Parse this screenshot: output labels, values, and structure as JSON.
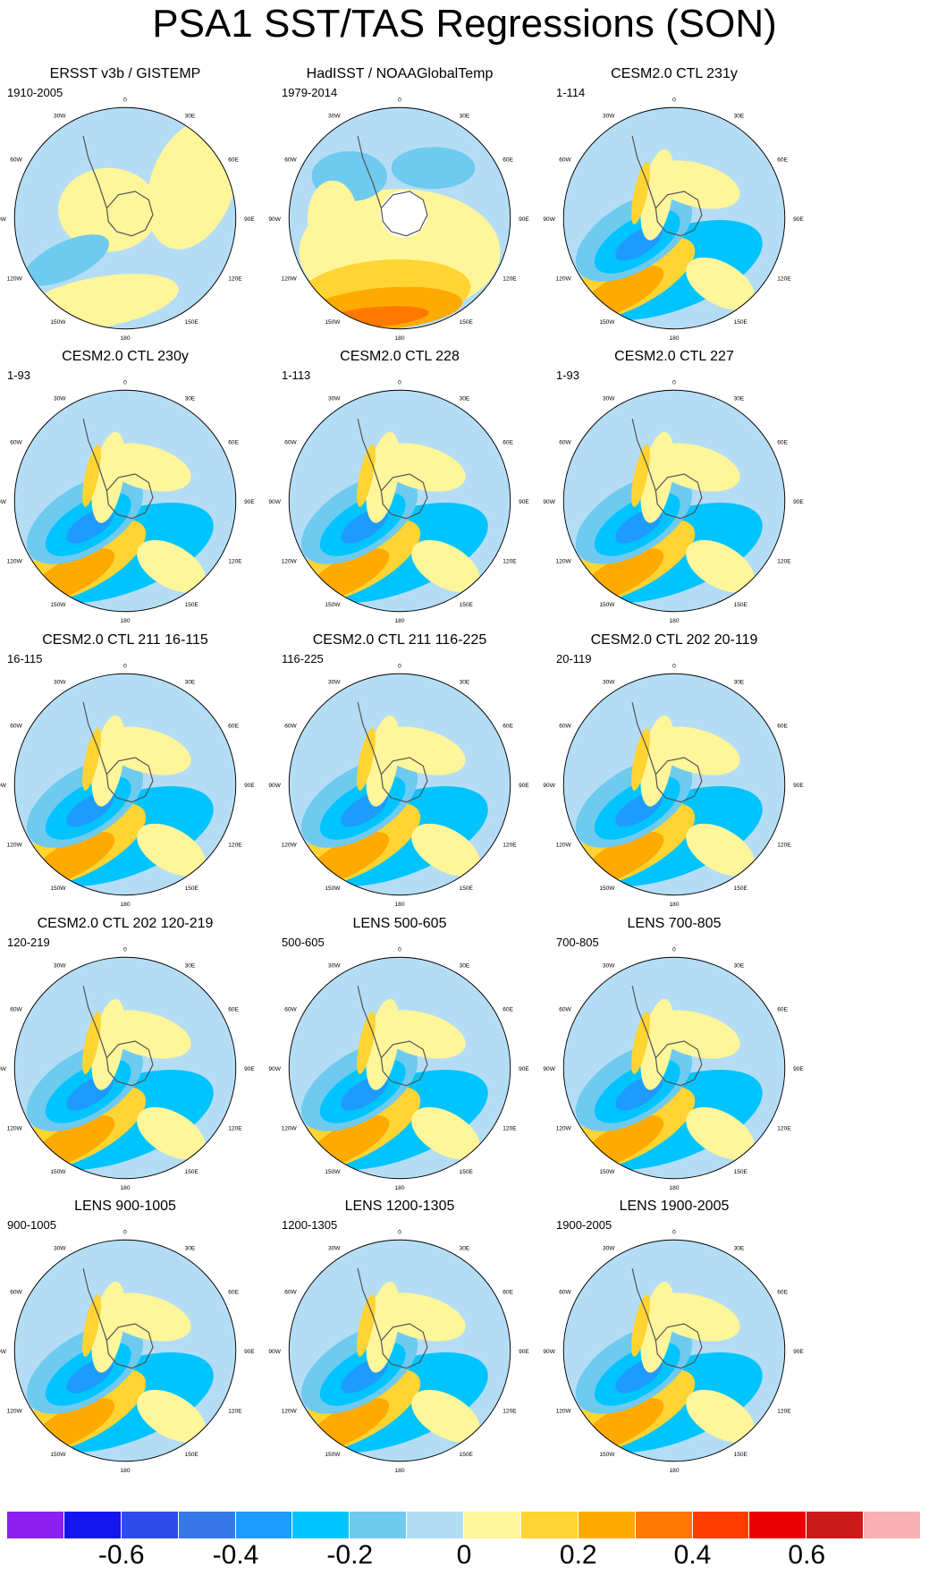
{
  "title": "PSA1 SST/TAS Regressions (SON)",
  "longitude_labels": [
    "0",
    "30E",
    "60E",
    "90E",
    "120E",
    "150E",
    "180",
    "150W",
    "120W",
    "90W",
    "60W",
    "30W"
  ],
  "panels": [
    {
      "title": "ERSST v3b / GISTEMP",
      "period": "1910-2005",
      "pattern": "obs1"
    },
    {
      "title": "HadISST / NOAAGlobalTemp",
      "period": "1979-2014",
      "pattern": "obs2"
    },
    {
      "title": "CESM2.0 CTL 231y",
      "period": "1-114",
      "pattern": "model"
    },
    {
      "title": "CESM2.0 CTL 230y",
      "period": "1-93",
      "pattern": "model"
    },
    {
      "title": "CESM2.0 CTL 228",
      "period": "1-113",
      "pattern": "model"
    },
    {
      "title": "CESM2.0 CTL 227",
      "period": "1-93",
      "pattern": "model"
    },
    {
      "title": "CESM2.0 CTL 211 16-115",
      "period": "16-115",
      "pattern": "model"
    },
    {
      "title": "CESM2.0 CTL 211 116-225",
      "period": "116-225",
      "pattern": "model"
    },
    {
      "title": "CESM2.0 CTL 202 20-119",
      "period": "20-119",
      "pattern": "model"
    },
    {
      "title": "CESM2.0 CTL 202 120-219",
      "period": "120-219",
      "pattern": "model"
    },
    {
      "title": "LENS 500-605",
      "period": "500-605",
      "pattern": "model"
    },
    {
      "title": "LENS 700-805",
      "period": "700-805",
      "pattern": "model"
    },
    {
      "title": "LENS 900-1005",
      "period": "900-1005",
      "pattern": "model"
    },
    {
      "title": "LENS 1200-1305",
      "period": "1200-1305",
      "pattern": "model"
    },
    {
      "title": "LENS 1900-2005",
      "period": "1900-2005",
      "pattern": "model"
    }
  ],
  "colorbar": {
    "colors": [
      "#8B20F0",
      "#1515F0",
      "#2E4CEB",
      "#3778E8",
      "#1E9BFF",
      "#00C4FF",
      "#6FCAF0",
      "#B4DDF5",
      "#FFF59A",
      "#FFD433",
      "#FFAA00",
      "#FF7800",
      "#FF3C00",
      "#EE0000",
      "#CC1A1A",
      "#F9B0B0"
    ],
    "labels": [
      "-0.6",
      "-0.4",
      "-0.2",
      "0",
      "0.2",
      "0.4",
      "0.6"
    ],
    "label_values": [
      -0.6,
      -0.4,
      -0.2,
      0,
      0.2,
      0.4,
      0.6
    ],
    "range": [
      -0.8,
      0.8
    ]
  },
  "chart_data": {
    "type": "heatmap",
    "title": "PSA1 SST/TAS Regressions (SON)",
    "projection": "south polar stereographic",
    "contour_levels": [
      -0.7,
      -0.6,
      -0.5,
      -0.4,
      -0.3,
      -0.2,
      -0.1,
      0,
      0.1,
      0.2,
      0.3,
      0.4,
      0.5,
      0.6,
      0.7
    ],
    "color_range": [
      -0.8,
      0.8
    ],
    "panels": [
      "ERSST v3b / GISTEMP (1910-2005)",
      "HadISST / NOAAGlobalTemp (1979-2014)",
      "CESM2.0 CTL 231y (1-114)",
      "CESM2.0 CTL 230y (1-93)",
      "CESM2.0 CTL 228 (1-113)",
      "CESM2.0 CTL 227 (1-93)",
      "CESM2.0 CTL 211 16-115 (16-115)",
      "CESM2.0 CTL 211 116-225 (116-225)",
      "CESM2.0 CTL 202 20-119 (20-119)",
      "CESM2.0 CTL 202 120-219 (120-219)",
      "LENS 500-605 (500-605)",
      "LENS 700-805 (700-805)",
      "LENS 900-1005 (900-1005)",
      "LENS 1200-1305 (1200-1305)",
      "LENS 1900-2005 (1900-2005)"
    ],
    "pattern_summary": "Negative anomalies (-0.2 to -0.5) centred near 110W-140W south of 50S; positive anomalies (0.1 to 0.4) in an arc from 150W to 180 and over the Antarctic Peninsula region"
  }
}
